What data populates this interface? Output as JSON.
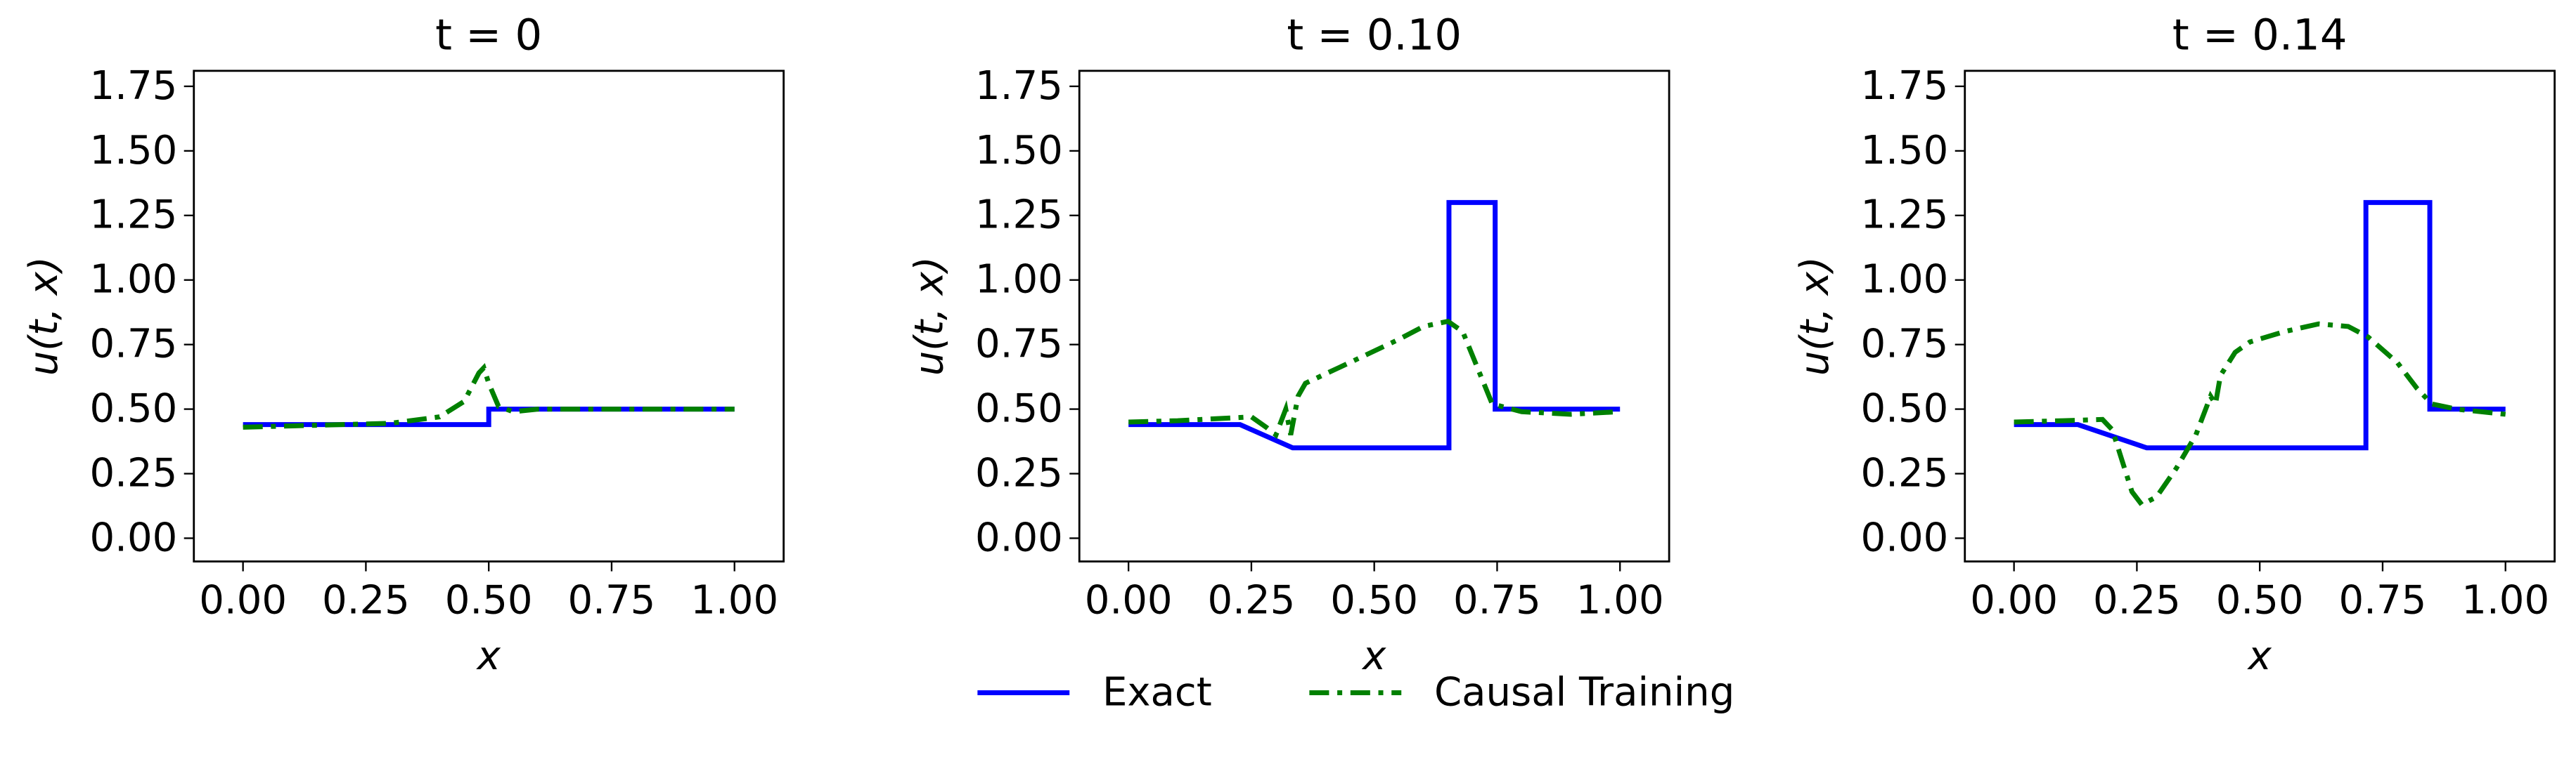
{
  "chart_data": [
    {
      "type": "line",
      "title": "t = 0",
      "x_label": "x",
      "y_label": "u(t, x)",
      "xlim": [
        -0.1,
        1.1
      ],
      "ylim": [
        -0.09,
        1.81
      ],
      "xticks": [
        {
          "value": 0,
          "label": "0.00"
        },
        {
          "value": 0.25,
          "label": "0.25"
        },
        {
          "value": 0.5,
          "label": "0.50"
        },
        {
          "value": 0.75,
          "label": "0.75"
        },
        {
          "value": 1,
          "label": "1.00"
        }
      ],
      "yticks": [
        {
          "value": 0,
          "label": "0.00"
        },
        {
          "value": 0.25,
          "label": "0.25"
        },
        {
          "value": 0.5,
          "label": "0.50"
        },
        {
          "value": 0.75,
          "label": "0.75"
        },
        {
          "value": 1,
          "label": "1.00"
        },
        {
          "value": 1.25,
          "label": "1.25"
        },
        {
          "value": 1.5,
          "label": "1.50"
        },
        {
          "value": 1.75,
          "label": "1.75"
        }
      ],
      "series": [
        {
          "name": "Exact",
          "color": "#0000ff",
          "linestyle": "solid",
          "x": [
            0,
            0.5,
            0.5,
            1
          ],
          "values": [
            0.44,
            0.44,
            0.5,
            0.5
          ]
        },
        {
          "name": "Causal Training",
          "color": "#008000",
          "linestyle": "dashdot",
          "x": [
            0,
            0.1,
            0.2,
            0.3,
            0.4,
            0.45,
            0.48,
            0.49,
            0.5,
            0.52,
            0.55,
            0.6,
            0.7,
            0.8,
            0.9,
            1
          ],
          "values": [
            0.43,
            0.435,
            0.44,
            0.445,
            0.47,
            0.53,
            0.64,
            0.66,
            0.6,
            0.51,
            0.49,
            0.5,
            0.5,
            0.5,
            0.5,
            0.5
          ]
        }
      ]
    },
    {
      "type": "line",
      "title": "t = 0.10",
      "x_label": "x",
      "y_label": "u(t, x)",
      "xlim": [
        -0.1,
        1.1
      ],
      "ylim": [
        -0.09,
        1.81
      ],
      "xticks": [
        {
          "value": 0,
          "label": "0.00"
        },
        {
          "value": 0.25,
          "label": "0.25"
        },
        {
          "value": 0.5,
          "label": "0.50"
        },
        {
          "value": 0.75,
          "label": "0.75"
        },
        {
          "value": 1,
          "label": "1.00"
        }
      ],
      "yticks": [
        {
          "value": 0,
          "label": "0.00"
        },
        {
          "value": 0.25,
          "label": "0.25"
        },
        {
          "value": 0.5,
          "label": "0.50"
        },
        {
          "value": 0.75,
          "label": "0.75"
        },
        {
          "value": 1,
          "label": "1.00"
        },
        {
          "value": 1.25,
          "label": "1.25"
        },
        {
          "value": 1.5,
          "label": "1.50"
        },
        {
          "value": 1.75,
          "label": "1.75"
        }
      ],
      "series": [
        {
          "color": "#0000ff",
          "linestyle": "solid",
          "x": [
            0,
            0.227,
            0.334,
            0.652,
            0.652,
            0.746,
            0.746,
            1
          ],
          "values": [
            0.44,
            0.44,
            0.35,
            0.35,
            1.3,
            1.3,
            0.5,
            0.5
          ]
        },
        {
          "color": "#008000",
          "linestyle": "dashdot",
          "x": [
            0,
            0.1,
            0.2,
            0.25,
            0.28,
            0.3,
            0.32,
            0.33,
            0.345,
            0.36,
            0.45,
            0.55,
            0.6,
            0.65,
            0.68,
            0.71,
            0.74,
            0.8,
            0.9,
            1
          ],
          "values": [
            0.45,
            0.455,
            0.465,
            0.47,
            0.43,
            0.4,
            0.5,
            0.4,
            0.55,
            0.6,
            0.68,
            0.77,
            0.82,
            0.84,
            0.8,
            0.66,
            0.52,
            0.49,
            0.48,
            0.49
          ]
        }
      ]
    },
    {
      "type": "line",
      "title": "t = 0.14",
      "x_label": "x",
      "y_label": "u(t, x)",
      "xlim": [
        -0.1,
        1.1
      ],
      "ylim": [
        -0.09,
        1.81
      ],
      "xticks": [
        {
          "value": 0,
          "label": "0.00"
        },
        {
          "value": 0.25,
          "label": "0.25"
        },
        {
          "value": 0.5,
          "label": "0.50"
        },
        {
          "value": 0.75,
          "label": "0.75"
        },
        {
          "value": 1,
          "label": "1.00"
        }
      ],
      "yticks": [
        {
          "value": 0,
          "label": "0.00"
        },
        {
          "value": 0.25,
          "label": "0.25"
        },
        {
          "value": 0.5,
          "label": "0.50"
        },
        {
          "value": 0.75,
          "label": "0.75"
        },
        {
          "value": 1,
          "label": "1.00"
        },
        {
          "value": 1.25,
          "label": "1.25"
        },
        {
          "value": 1.5,
          "label": "1.50"
        },
        {
          "value": 1.75,
          "label": "1.75"
        }
      ],
      "series": [
        {
          "color": "#0000ff",
          "linestyle": "solid",
          "x": [
            0,
            0.13,
            0.27,
            0.716,
            0.716,
            0.846,
            0.846,
            1
          ],
          "values": [
            0.44,
            0.44,
            0.35,
            0.35,
            1.3,
            1.3,
            0.5,
            0.5
          ]
        },
        {
          "color": "#008000",
          "linestyle": "dashdot",
          "x": [
            0,
            0.1,
            0.18,
            0.2,
            0.22,
            0.24,
            0.26,
            0.29,
            0.33,
            0.37,
            0.4,
            0.41,
            0.42,
            0.45,
            0.48,
            0.55,
            0.62,
            0.68,
            0.72,
            0.78,
            0.82,
            0.85,
            0.9,
            1
          ],
          "values": [
            0.45,
            0.455,
            0.46,
            0.42,
            0.3,
            0.18,
            0.13,
            0.16,
            0.27,
            0.4,
            0.55,
            0.52,
            0.63,
            0.72,
            0.76,
            0.8,
            0.83,
            0.82,
            0.78,
            0.68,
            0.58,
            0.52,
            0.5,
            0.48
          ]
        }
      ]
    }
  ]
}
